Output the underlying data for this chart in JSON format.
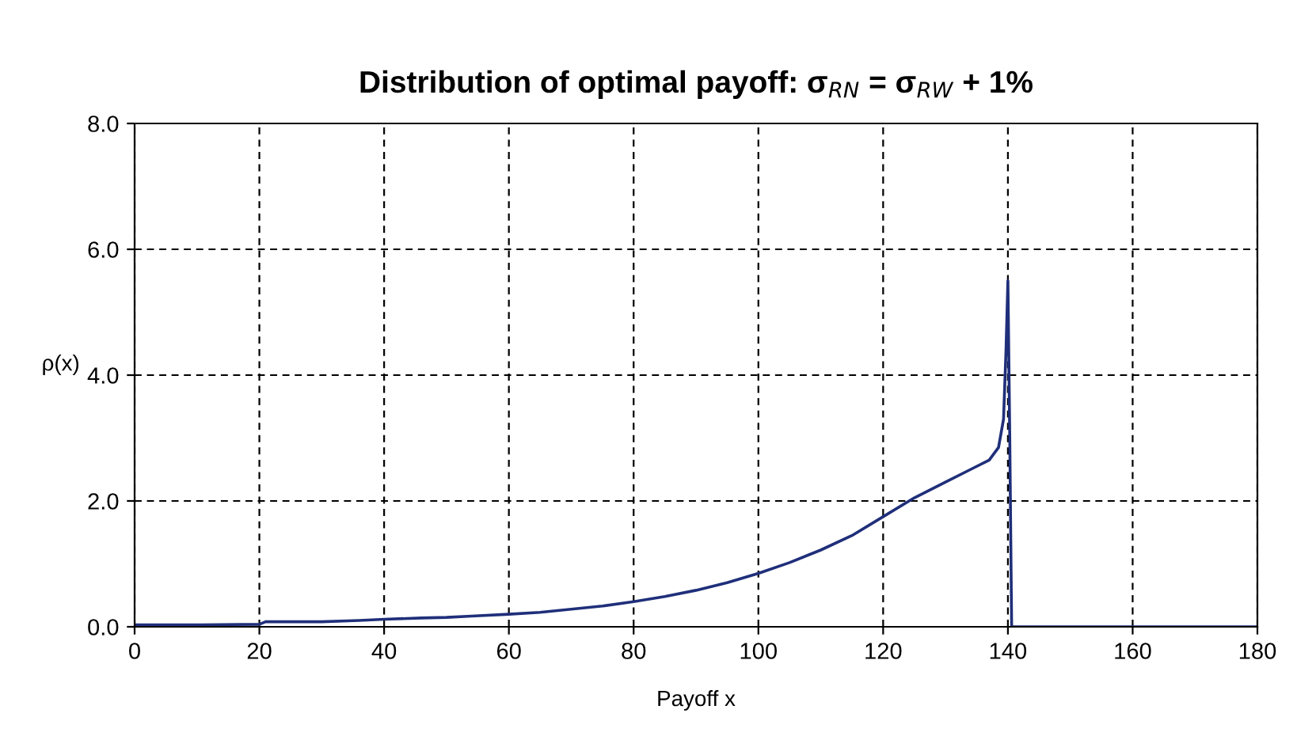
{
  "chart_data": {
    "type": "line",
    "title": "Distribution of optimal payoff: σ$_{RN}$ = σ$_{RW}$ + 1%",
    "xlabel": "Payoff x",
    "ylabel": "ρ(x)",
    "series": [
      {
        "color": "#1f2f7a",
        "x": [
          0,
          10,
          20,
          21,
          30,
          36,
          40,
          46,
          50,
          54,
          60,
          65,
          70,
          75,
          80,
          85,
          90,
          95,
          100,
          105,
          110,
          115,
          120,
          125,
          130,
          134,
          137,
          138.5,
          139.3,
          139.7,
          140,
          140.3,
          140.6,
          141,
          180
        ],
        "values": [
          0.03,
          0.03,
          0.04,
          0.08,
          0.08,
          0.1,
          0.12,
          0.14,
          0.15,
          0.17,
          0.2,
          0.23,
          0.28,
          0.33,
          0.4,
          0.48,
          0.58,
          0.7,
          0.85,
          1.02,
          1.22,
          1.45,
          1.75,
          2.05,
          2.3,
          2.5,
          2.65,
          2.85,
          3.3,
          4.4,
          5.5,
          3.0,
          0.0,
          0.0,
          0.0
        ]
      }
    ],
    "xlim": [
      0,
      180
    ],
    "xticks": [
      0,
      20,
      40,
      60,
      80,
      100,
      120,
      140,
      160,
      180
    ],
    "ylim": [
      0,
      8
    ],
    "yticks": [
      {
        "value": 0,
        "label": "0.0"
      },
      {
        "value": 2,
        "label": "2.0"
      },
      {
        "value": 4,
        "label": "4.0"
      },
      {
        "value": 6,
        "label": "6.0"
      },
      {
        "value": 8,
        "label": "8.0"
      }
    ],
    "grid": true,
    "line_style": "solid"
  }
}
